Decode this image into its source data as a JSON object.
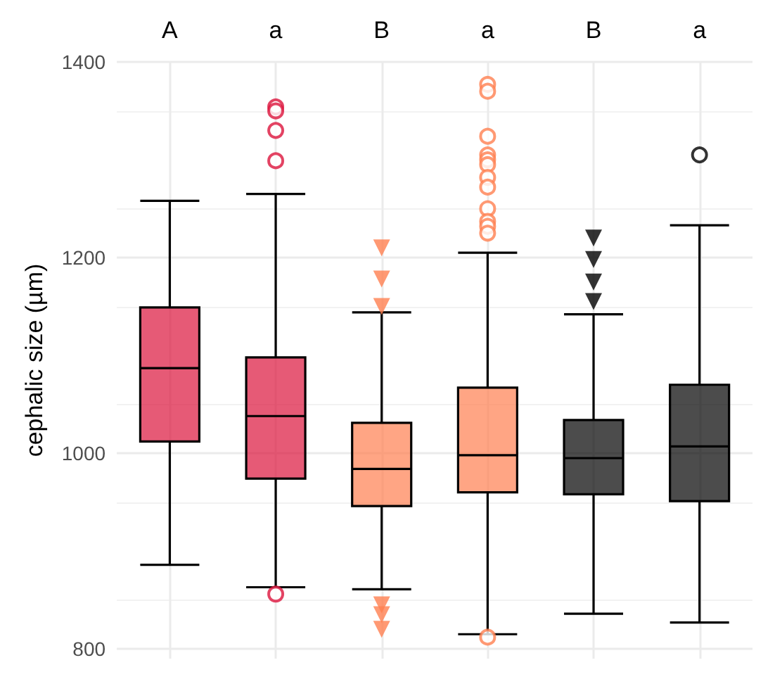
{
  "chart_data": {
    "type": "box",
    "ylabel": "cephalic size (µm)",
    "categories": [
      null,
      null,
      null,
      null,
      null,
      null
    ],
    "ylim": [
      790,
      1400
    ],
    "yticks": [
      800,
      1000,
      1200,
      1400
    ],
    "grid": true,
    "annotations": [
      "A",
      "a",
      "B",
      "a",
      "B",
      "a"
    ],
    "series": [
      {
        "color": "#dc143c",
        "marker": "triangle",
        "boxes": [
          {
            "low": 886,
            "q1": 1012,
            "median": 1087,
            "q3": 1149,
            "high": 1258
          },
          null,
          null,
          null,
          null,
          null
        ]
      },
      {
        "color": "#dc143c",
        "marker": "circle",
        "boxes": [
          null,
          {
            "low": 863,
            "q1": 974,
            "median": 1038,
            "q3": 1098,
            "high": 1265,
            "outliers": [
              1354,
              1350,
              1330,
              1299,
              856
            ]
          },
          null,
          null,
          null,
          null
        ]
      },
      {
        "color": "#ff7f50",
        "marker": "triangle",
        "boxes": [
          null,
          null,
          {
            "low": 861,
            "q1": 946,
            "median": 984,
            "q3": 1031,
            "high": 1144,
            "outliers": [
              1210,
              1178,
              1150,
              845,
              835,
              820
            ]
          },
          null,
          null,
          null
        ]
      },
      {
        "color": "#ff7f50",
        "marker": "circle",
        "boxes": [
          null,
          null,
          null,
          {
            "low": 815,
            "q1": 960,
            "median": 998,
            "q3": 1067,
            "high": 1205,
            "outliers": [
              1377,
              1370,
              1324,
              1305,
              1300,
              1295,
              1282,
              1272,
              1250,
              1237,
              1232,
              1225,
              812
            ]
          },
          null,
          null
        ]
      },
      {
        "color": "#000000",
        "marker": "triangle",
        "boxes": [
          null,
          null,
          null,
          null,
          {
            "low": 836,
            "q1": 958,
            "median": 995,
            "q3": 1034,
            "high": 1142,
            "outliers": [
              1220,
              1198,
              1175,
              1155
            ]
          },
          null
        ]
      },
      {
        "color": "#000000",
        "marker": "circle",
        "boxes": [
          null,
          null,
          null,
          null,
          null,
          {
            "low": 827,
            "q1": 951,
            "median": 1007,
            "q3": 1070,
            "high": 1233,
            "outliers": [
              1305
            ]
          }
        ]
      }
    ]
  }
}
